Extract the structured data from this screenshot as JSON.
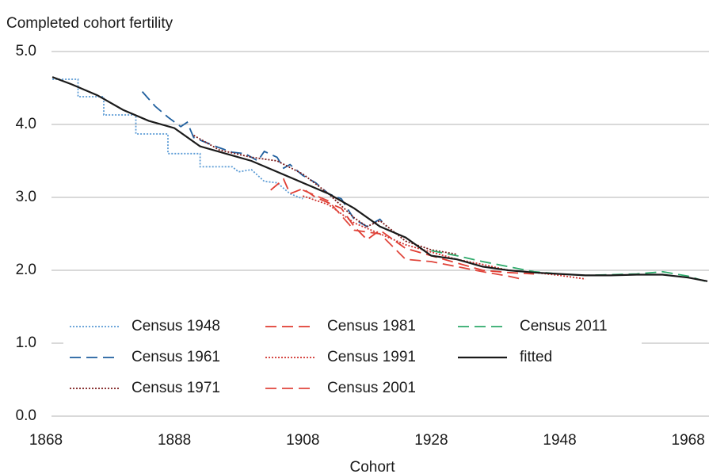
{
  "chart_data": {
    "type": "line",
    "y_label": "Completed cohort fertility",
    "x_label": "Cohort",
    "xlim": [
      1868,
      1971
    ],
    "xticks": [
      1868,
      1888,
      1908,
      1928,
      1948,
      1968
    ],
    "ylim": [
      0,
      5
    ],
    "yticks": [
      {
        "value": 0,
        "label": "0.0"
      },
      {
        "value": 1,
        "label": "1.0"
      },
      {
        "value": 2,
        "label": "2.0"
      },
      {
        "value": 3,
        "label": "3.0"
      },
      {
        "value": 4,
        "label": "4.0"
      },
      {
        "value": 5,
        "label": "5.0"
      }
    ],
    "grid": true,
    "legend": "bottom-left",
    "series": [
      {
        "name": "Census 1948",
        "color": "#5b9bd5",
        "dash": "dotted",
        "x": [
          1869,
          1873,
          1873,
          1877,
          1877,
          1882,
          1882,
          1887,
          1887,
          1892,
          1892,
          1897,
          1898,
          1900,
          1902,
          1904,
          1906,
          1908
        ],
        "values": [
          4.62,
          4.62,
          4.38,
          4.38,
          4.13,
          4.13,
          3.87,
          3.87,
          3.6,
          3.6,
          3.42,
          3.42,
          3.35,
          3.38,
          3.22,
          3.2,
          3.05,
          2.98
        ]
      },
      {
        "name": "Census 1961",
        "color": "#1f5f9e",
        "dash": "dashed",
        "x": [
          1883,
          1885,
          1887,
          1889,
          1890,
          1891,
          1893,
          1895,
          1897,
          1899,
          1901,
          1902,
          1904,
          1905,
          1906,
          1908,
          1910,
          1912,
          1914,
          1916,
          1918,
          1920,
          1921
        ],
        "values": [
          4.45,
          4.25,
          4.1,
          3.97,
          4.03,
          3.82,
          3.75,
          3.68,
          3.62,
          3.6,
          3.5,
          3.63,
          3.55,
          3.4,
          3.45,
          3.3,
          3.2,
          3.05,
          2.98,
          2.7,
          2.6,
          2.7,
          2.6
        ]
      },
      {
        "name": "Census 1971",
        "color": "#7b1a1a",
        "dash": "dotted",
        "x": [
          1891,
          1895,
          1900,
          1904,
          1908,
          1912,
          1916,
          1918,
          1920,
          1924,
          1928,
          1932
        ],
        "values": [
          3.85,
          3.65,
          3.55,
          3.5,
          3.32,
          3.05,
          2.72,
          2.6,
          2.68,
          2.4,
          2.28,
          2.22
        ]
      },
      {
        "name": "Census 1981",
        "color": "#e03c31",
        "dash": "dashed",
        "x": [
          1903,
          1905,
          1906,
          1908,
          1910,
          1914,
          1916,
          1918,
          1920,
          1924,
          1928,
          1932,
          1936,
          1940,
          1944
        ],
        "values": [
          3.1,
          3.25,
          3.05,
          3.12,
          3.0,
          2.85,
          2.6,
          2.42,
          2.55,
          2.3,
          2.2,
          2.1,
          2.0,
          1.97,
          1.95
        ]
      },
      {
        "name": "Census 1991",
        "color": "#d0312d",
        "dash": "dotted",
        "x": [
          1908,
          1912,
          1916,
          1920,
          1924,
          1928,
          1932,
          1936,
          1940,
          1944,
          1948,
          1952
        ],
        "values": [
          3.02,
          2.9,
          2.65,
          2.5,
          2.35,
          2.25,
          2.15,
          2.08,
          2.0,
          1.97,
          1.93,
          1.88
        ]
      },
      {
        "name": "Census 2001",
        "color": "#e0463c",
        "dash": "dashed",
        "x": [
          1908,
          1912,
          1916,
          1920,
          1924,
          1928,
          1932,
          1936,
          1940,
          1942
        ],
        "values": [
          3.1,
          2.95,
          2.55,
          2.5,
          2.15,
          2.12,
          2.05,
          1.98,
          1.92,
          1.88
        ]
      },
      {
        "name": "Census 2011",
        "color": "#2eaa6b",
        "dash": "dashed",
        "x": [
          1928,
          1932,
          1936,
          1940,
          1944,
          1948,
          1952,
          1956,
          1960,
          1964,
          1968,
          1971
        ],
        "values": [
          2.27,
          2.2,
          2.12,
          2.05,
          1.98,
          1.95,
          1.93,
          1.94,
          1.95,
          1.98,
          1.92,
          1.84
        ]
      },
      {
        "name": "fitted",
        "color": "#1a1a1a",
        "dash": "solid",
        "x": [
          1869,
          1872,
          1876,
          1880,
          1884,
          1888,
          1892,
          1896,
          1900,
          1904,
          1908,
          1912,
          1916,
          1920,
          1924,
          1928,
          1932,
          1936,
          1940,
          1944,
          1948,
          1952,
          1956,
          1960,
          1964,
          1968,
          1971
        ],
        "values": [
          4.65,
          4.55,
          4.4,
          4.2,
          4.05,
          3.95,
          3.7,
          3.6,
          3.5,
          3.35,
          3.2,
          3.05,
          2.85,
          2.6,
          2.45,
          2.2,
          2.15,
          2.05,
          2.0,
          1.97,
          1.95,
          1.93,
          1.93,
          1.94,
          1.94,
          1.9,
          1.85
        ]
      }
    ]
  }
}
